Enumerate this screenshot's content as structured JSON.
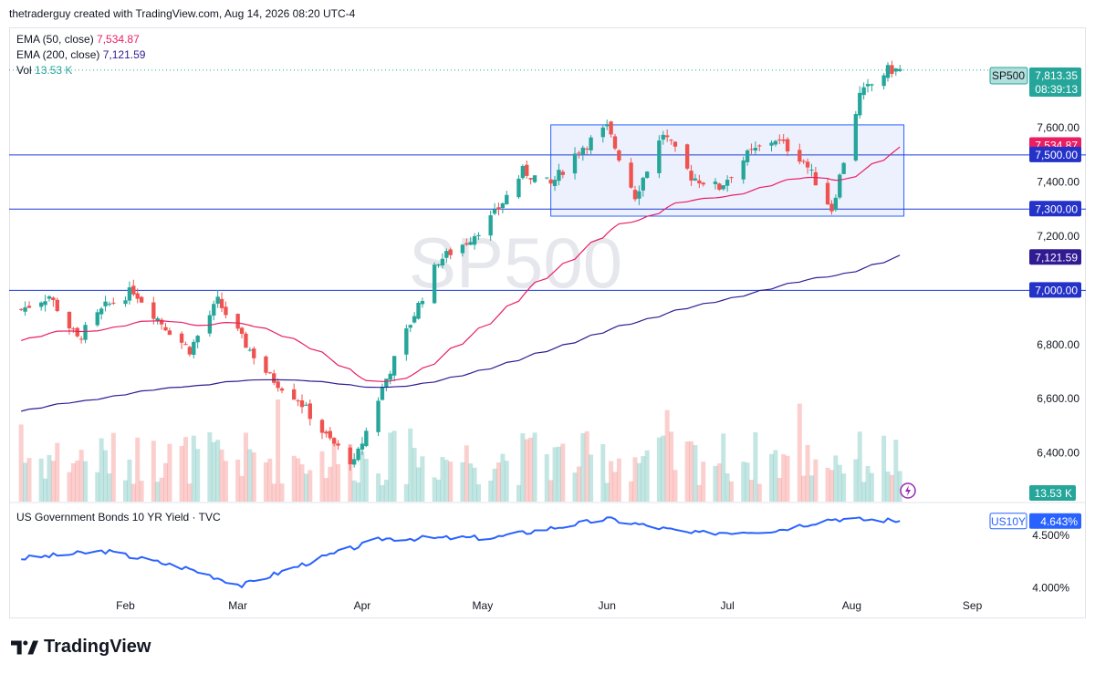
{
  "header": {
    "attribution": "thetraderguy created with TradingView.com, Aug 14, 2026 08:20 UTC-4"
  },
  "legend": {
    "ema50_label": "EMA (50, close)",
    "ema50_value": "7,534.87",
    "ema200_label": "EMA (200, close)",
    "ema200_value": "7,121.59",
    "vol_label": "Vol",
    "vol_value": "13.53 K"
  },
  "sub_chart": {
    "title": "US Government Bonds 10 YR Yield · TVC"
  },
  "watermark": "SP500",
  "footer": {
    "brand": "TradingView"
  },
  "colors": {
    "up": "#26a69a",
    "down": "#ef5350",
    "ema50": "#e91e63",
    "ema200": "#311b92",
    "line": "#2962ff",
    "box_fill": "#e8eefc"
  },
  "chart_data": [
    {
      "type": "candlestick",
      "symbol": "SP500",
      "x_ticks": [
        "Feb",
        "Mar",
        "Apr",
        "May",
        "Jun",
        "Jul",
        "Aug",
        "Sep"
      ],
      "y_ticks": [
        "7,600.00",
        "7,400.00",
        "7,200.00",
        "6,800.00",
        "6,600.00",
        "6,400.00"
      ],
      "ylim": [
        6220,
        7870
      ],
      "key_points": [
        {
          "date": "Jan 06",
          "close": 6930
        },
        {
          "date": "Jan 13",
          "close": 6980
        },
        {
          "date": "Jan 20",
          "close": 6820
        },
        {
          "date": "Jan 27",
          "close": 6940
        },
        {
          "date": "Feb 03",
          "close": 7000
        },
        {
          "date": "Feb 10",
          "close": 6880
        },
        {
          "date": "Feb 17",
          "close": 6780
        },
        {
          "date": "Feb 24",
          "close": 6960
        },
        {
          "date": "Mar 02",
          "close": 6820
        },
        {
          "date": "Mar 09",
          "close": 6680
        },
        {
          "date": "Mar 16",
          "close": 6600
        },
        {
          "date": "Mar 23",
          "close": 6460
        },
        {
          "date": "Mar 30",
          "close": 6360
        },
        {
          "date": "Apr 06",
          "close": 6640
        },
        {
          "date": "Apr 13",
          "close": 6880
        },
        {
          "date": "Apr 20",
          "close": 7110
        },
        {
          "date": "Apr 27",
          "close": 7180
        },
        {
          "date": "May 04",
          "close": 7280
        },
        {
          "date": "May 11",
          "close": 7440
        },
        {
          "date": "May 18",
          "close": 7390
        },
        {
          "date": "May 25",
          "close": 7520
        },
        {
          "date": "Jun 01",
          "close": 7600
        },
        {
          "date": "Jun 08",
          "close": 7350
        },
        {
          "date": "Jun 15",
          "close": 7580
        },
        {
          "date": "Jun 22",
          "close": 7420
        },
        {
          "date": "Jun 29",
          "close": 7380
        },
        {
          "date": "Jul 06",
          "close": 7500
        },
        {
          "date": "Jul 13",
          "close": 7560
        },
        {
          "date": "Jul 20",
          "close": 7480
        },
        {
          "date": "Jul 27",
          "close": 7300
        },
        {
          "date": "Aug 03",
          "close": 7720
        },
        {
          "date": "Aug 10",
          "close": 7813.35
        }
      ],
      "horizontal_levels": [
        {
          "value": 7500,
          "label": "7,500.00"
        },
        {
          "value": 7300,
          "label": "7,300.00"
        },
        {
          "value": 7000,
          "label": "7,000.00"
        }
      ],
      "range_box": {
        "from": "May 18",
        "to": "Aug 14",
        "low": 7274,
        "high": 7611
      },
      "price_tags": [
        {
          "name": "SP500",
          "value": "7,813.35",
          "countdown": "08:39:13"
        },
        {
          "name": "EMA 50",
          "value": "7,534.87"
        },
        {
          "name": "EMA 200",
          "value": "7,121.59"
        },
        {
          "name": "Vol",
          "value": "13.53 K"
        }
      ]
    },
    {
      "type": "line",
      "symbol": "US10Y",
      "name": "US Government Bonds 10 YR Yield · TVC",
      "last_value": "4.643%",
      "y_ticks": [
        "4.500%",
        "4.000%"
      ],
      "ylim": [
        3.95,
        4.72
      ],
      "key_points": [
        {
          "date": "Jan 06",
          "value": 4.28
        },
        {
          "date": "Jan 27",
          "value": 4.35
        },
        {
          "date": "Feb 17",
          "value": 4.18
        },
        {
          "date": "Mar 02",
          "value": 4.02
        },
        {
          "date": "Mar 23",
          "value": 4.3
        },
        {
          "date": "Apr 06",
          "value": 4.47
        },
        {
          "date": "May 04",
          "value": 4.48
        },
        {
          "date": "Jun 01",
          "value": 4.66
        },
        {
          "date": "Jun 22",
          "value": 4.52
        },
        {
          "date": "Jul 13",
          "value": 4.55
        },
        {
          "date": "Jul 27",
          "value": 4.66
        },
        {
          "date": "Aug 14",
          "value": 4.643
        }
      ]
    }
  ]
}
